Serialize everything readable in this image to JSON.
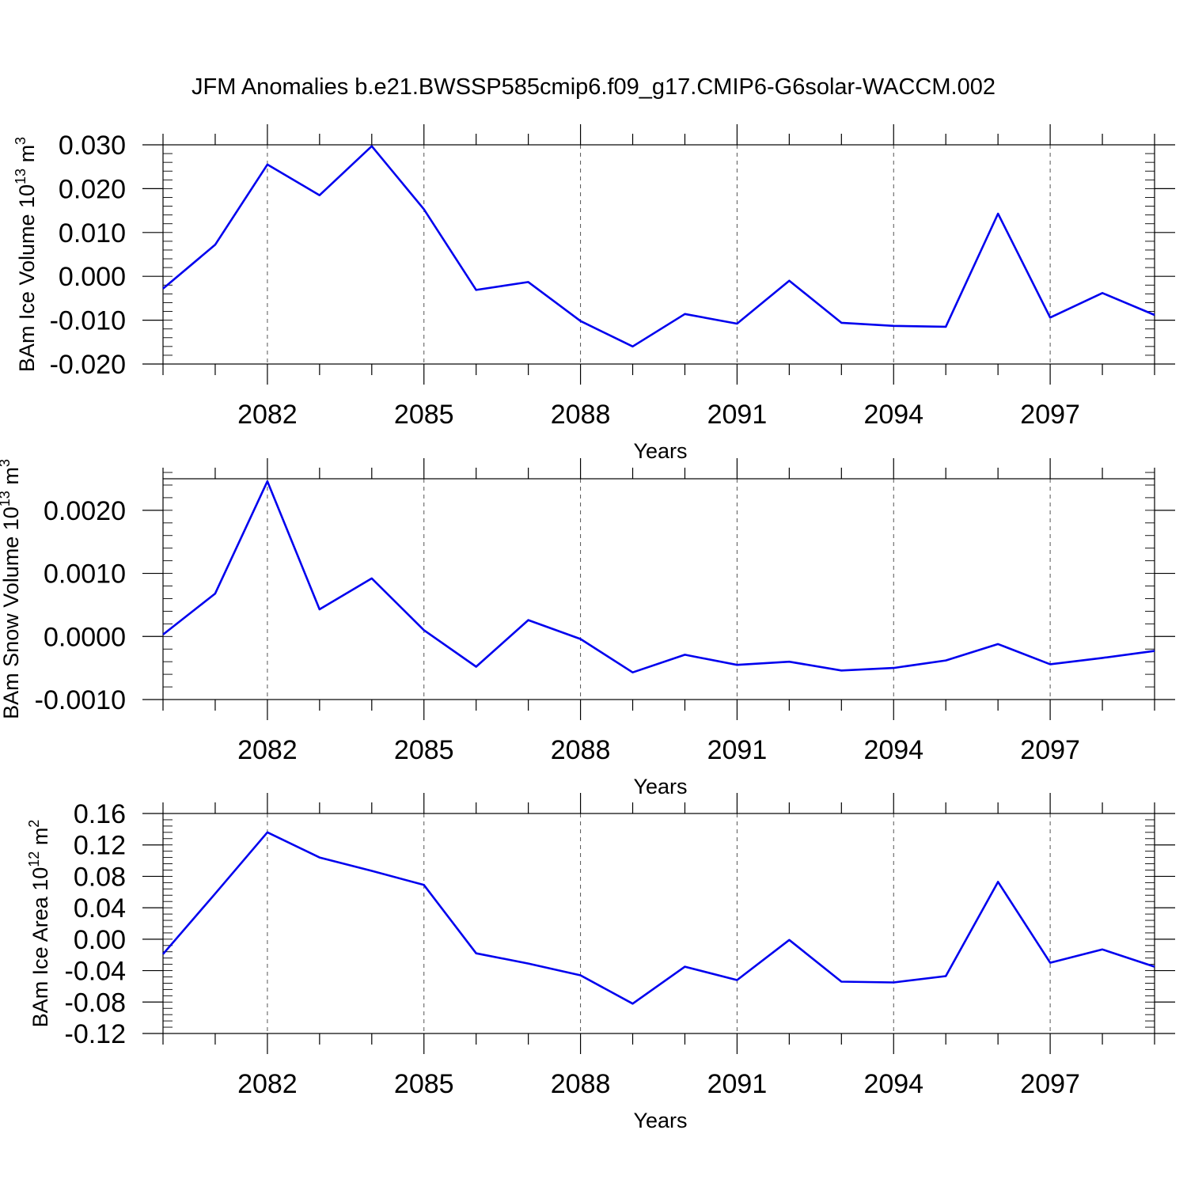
{
  "title": "JFM Anomalies b.e21.BWSSP585cmip6.f09_g17.CMIP6-G6solar-WACCM.002",
  "line_color": "#0000ee",
  "chart_data": [
    {
      "type": "line",
      "id": "ice-volume",
      "ylabel_main": "BAm Ice Volume 10",
      "ylabel_exp": "13",
      "ylabel_unit": " m",
      "ylabel_unit_exp": "3",
      "xlabel": "Years",
      "xlim": [
        2080,
        2099
      ],
      "ylim": [
        -0.02,
        0.03
      ],
      "yticks": [
        -0.02,
        -0.01,
        0.0,
        0.01,
        0.02,
        0.03
      ],
      "ytick_labels": [
        "-0.020",
        "-0.010",
        "0.000",
        "0.010",
        "0.020",
        "0.030"
      ],
      "yminor_step": 0.002,
      "xticks": [
        2082,
        2085,
        2088,
        2091,
        2094,
        2097
      ],
      "xtick_labels": [
        "2082",
        "2085",
        "2088",
        "2091",
        "2094",
        "2097"
      ],
      "grid": "dashed vertical at labeled years",
      "x": [
        2080,
        2081,
        2082,
        2083,
        2084,
        2085,
        2086,
        2087,
        2088,
        2089,
        2090,
        2091,
        2092,
        2093,
        2094,
        2095,
        2096,
        2097,
        2098,
        2099
      ],
      "values": [
        -0.0028,
        0.0072,
        0.0255,
        0.0185,
        0.0297,
        0.0153,
        -0.0031,
        -0.0013,
        -0.0102,
        -0.016,
        -0.0086,
        -0.0108,
        -0.001,
        -0.0106,
        -0.0113,
        -0.0115,
        0.0143,
        -0.0094,
        -0.0038,
        -0.0088
      ]
    },
    {
      "type": "line",
      "id": "snow-volume",
      "ylabel_main": "BAm Snow Volume 10",
      "ylabel_exp": "13",
      "ylabel_unit": " m",
      "ylabel_unit_exp": "3",
      "xlabel": "Years",
      "xlim": [
        2080,
        2099
      ],
      "ylim": [
        -0.001,
        0.0025
      ],
      "yticks": [
        -0.001,
        0.0,
        0.001,
        0.002
      ],
      "ytick_labels": [
        "-0.0010",
        "0.0000",
        "0.0010",
        "0.0020"
      ],
      "yminor_step": 0.0002,
      "xticks": [
        2082,
        2085,
        2088,
        2091,
        2094,
        2097
      ],
      "xtick_labels": [
        "2082",
        "2085",
        "2088",
        "2091",
        "2094",
        "2097"
      ],
      "grid": "dashed vertical at labeled years",
      "x": [
        2080,
        2081,
        2082,
        2083,
        2084,
        2085,
        2086,
        2087,
        2088,
        2089,
        2090,
        2091,
        2092,
        2093,
        2094,
        2095,
        2096,
        2097,
        2098,
        2099
      ],
      "values": [
        3e-05,
        0.00068,
        0.00246,
        0.00043,
        0.00092,
        0.0001,
        -0.00048,
        0.00026,
        -4e-05,
        -0.00057,
        -0.00029,
        -0.00045,
        -0.0004,
        -0.00054,
        -0.0005,
        -0.00038,
        -0.00012,
        -0.00044,
        -0.00034,
        -0.00023
      ]
    },
    {
      "type": "line",
      "id": "ice-area",
      "ylabel_main": "BAm Ice Area 10",
      "ylabel_exp": "12",
      "ylabel_unit": " m",
      "ylabel_unit_exp": "2",
      "xlabel": "Years",
      "xlim": [
        2080,
        2099
      ],
      "ylim": [
        -0.12,
        0.16
      ],
      "yticks": [
        -0.12,
        -0.08,
        -0.04,
        0.0,
        0.04,
        0.08,
        0.12,
        0.16
      ],
      "ytick_labels": [
        "-0.12",
        "-0.08",
        "-0.04",
        "0.00",
        "0.04",
        "0.08",
        "0.12",
        "0.16"
      ],
      "yminor_step": 0.008,
      "xticks": [
        2082,
        2085,
        2088,
        2091,
        2094,
        2097
      ],
      "xtick_labels": [
        "2082",
        "2085",
        "2088",
        "2091",
        "2094",
        "2097"
      ],
      "grid": "dashed vertical at labeled years",
      "x": [
        2080,
        2081,
        2082,
        2083,
        2084,
        2085,
        2086,
        2087,
        2088,
        2089,
        2090,
        2091,
        2092,
        2093,
        2094,
        2095,
        2096,
        2097,
        2098,
        2099
      ],
      "values": [
        -0.019,
        0.058,
        0.136,
        0.104,
        0.087,
        0.069,
        -0.018,
        -0.031,
        -0.046,
        -0.082,
        -0.035,
        -0.052,
        -0.001,
        -0.054,
        -0.055,
        -0.047,
        0.073,
        -0.03,
        -0.013,
        -0.035
      ]
    }
  ]
}
